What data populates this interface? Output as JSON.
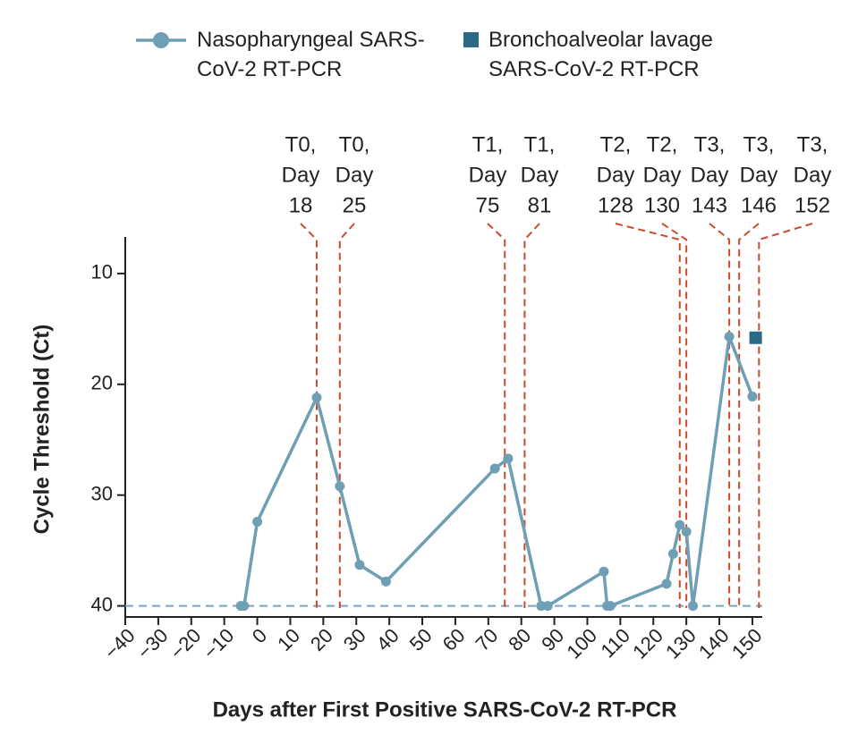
{
  "chart_data": {
    "type": "line",
    "xlabel": "Days after First Positive SARS-CoV-2 RT-PCR",
    "ylabel": "Cycle Threshold (Ct)",
    "xlim": [
      -40,
      153
    ],
    "ylim": [
      41,
      6.7
    ],
    "xticks": [
      {
        "value": -40,
        "label": "−40"
      },
      {
        "value": -30,
        "label": "−30"
      },
      {
        "value": -20,
        "label": "−20"
      },
      {
        "value": -10,
        "label": "−10"
      },
      0,
      10,
      20,
      30,
      40,
      50,
      60,
      70,
      80,
      90,
      100,
      110,
      120,
      130,
      140,
      150
    ],
    "yticks": [
      10,
      20,
      30,
      40
    ],
    "reference_line": {
      "value": 40,
      "color": "#7aa5c2"
    },
    "series": [
      {
        "name": "Nasopharyngeal SARS-CoV-2 RT-PCR",
        "color": "#6e9fb5",
        "marker": "circle",
        "show_line": true,
        "x": [
          -5,
          -4,
          0,
          18,
          25,
          31,
          39,
          72,
          76,
          86,
          88,
          105,
          106,
          107,
          124,
          126,
          128,
          130,
          132,
          143,
          150
        ],
        "values": [
          40,
          40,
          32.4,
          21.2,
          29.2,
          36.3,
          37.8,
          27.6,
          26.7,
          40,
          40,
          36.9,
          40,
          40,
          38,
          35.3,
          32.7,
          33.3,
          40,
          15.7,
          21.1
        ]
      },
      {
        "name": "Bronchoalveolar lavage SARS-CoV-2 RT-PCR",
        "color": "#2b6a86",
        "marker": "square",
        "show_line": false,
        "x": [
          151
        ],
        "values": [
          15.8
        ]
      }
    ],
    "annotations": {
      "color": "#cc4a2c",
      "items": [
        {
          "period": "T0,",
          "word": "Day",
          "day": 18
        },
        {
          "period": "T0,",
          "word": "Day",
          "day": 25
        },
        {
          "period": "T1,",
          "word": "Day",
          "day": 75
        },
        {
          "period": "T1,",
          "word": "Day",
          "day": 81
        },
        {
          "period": "T2,",
          "word": "Day",
          "day": 128
        },
        {
          "period": "T2,",
          "word": "Day",
          "day": 130
        },
        {
          "period": "T3,",
          "word": "Day",
          "day": 143
        },
        {
          "period": "T3,",
          "word": "Day",
          "day": 146
        },
        {
          "period": "T3,",
          "word": "Day",
          "day": 152
        }
      ]
    }
  }
}
